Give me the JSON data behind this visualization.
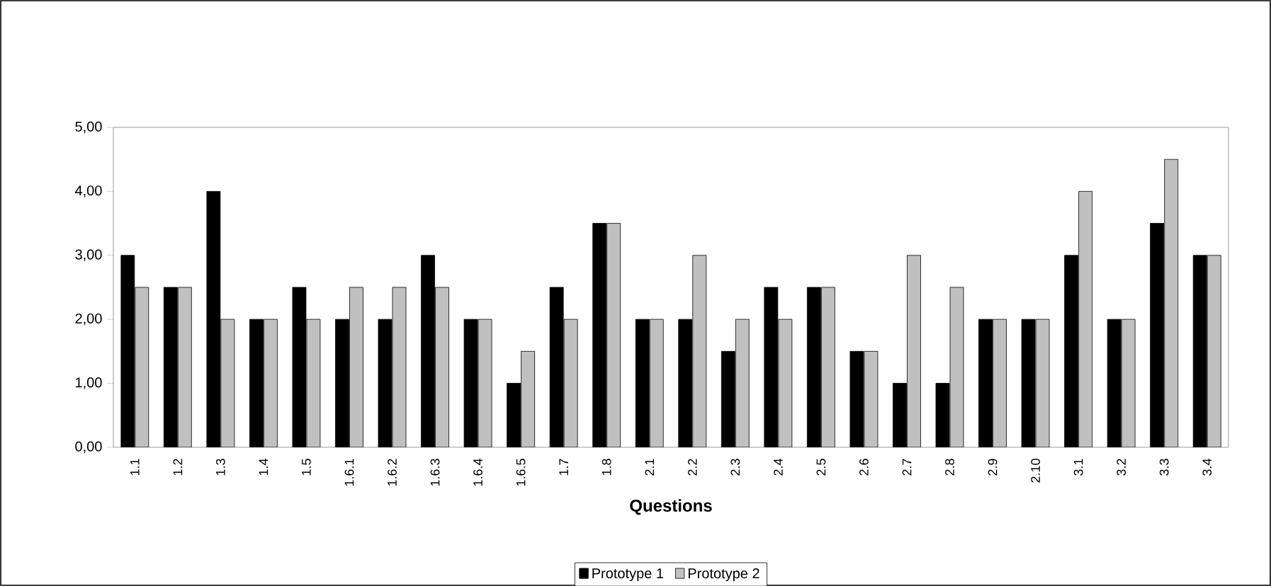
{
  "chart_data": {
    "type": "bar",
    "xlabel": "Questions",
    "categories": [
      "1.1",
      "1.2",
      "1.3",
      "1.4",
      "1.5",
      "1.6.1",
      "1.6.2",
      "1.6.3",
      "1.6.4",
      "1.6.5",
      "1.7",
      "1.8",
      "2.1",
      "2.2",
      "2.3",
      "2.4",
      "2.5",
      "2.6",
      "2.7",
      "2.8",
      "2.9",
      "2.10",
      "3.1",
      "3.2",
      "3.3",
      "3.4"
    ],
    "series": [
      {
        "name": "Prototype 1",
        "color": "#000000",
        "values": [
          3,
          2.5,
          4,
          2,
          2.5,
          2,
          2,
          3,
          2,
          1,
          2.5,
          3.5,
          2,
          2,
          1.5,
          2.5,
          2.5,
          1.5,
          1,
          1,
          2,
          2,
          3,
          2,
          3.5,
          3
        ]
      },
      {
        "name": "Prototype 2",
        "color": "#c0c0c0",
        "values": [
          2.5,
          2.5,
          2,
          2,
          2,
          2.5,
          2.5,
          2.5,
          2,
          1.5,
          2,
          3.5,
          2,
          3,
          2,
          2,
          2.5,
          1.5,
          3,
          2.5,
          2,
          2,
          4,
          2,
          4.5,
          3
        ]
      }
    ],
    "ylim": [
      0,
      5
    ],
    "yticks": [
      {
        "value": 0,
        "label": "0,00"
      },
      {
        "value": 1,
        "label": "1,00"
      },
      {
        "value": 2,
        "label": "2,00"
      },
      {
        "value": 3,
        "label": "3,00"
      },
      {
        "value": 4,
        "label": "4,00"
      },
      {
        "value": 5,
        "label": "5,00"
      }
    ],
    "legend": "bottom",
    "grid": false
  }
}
